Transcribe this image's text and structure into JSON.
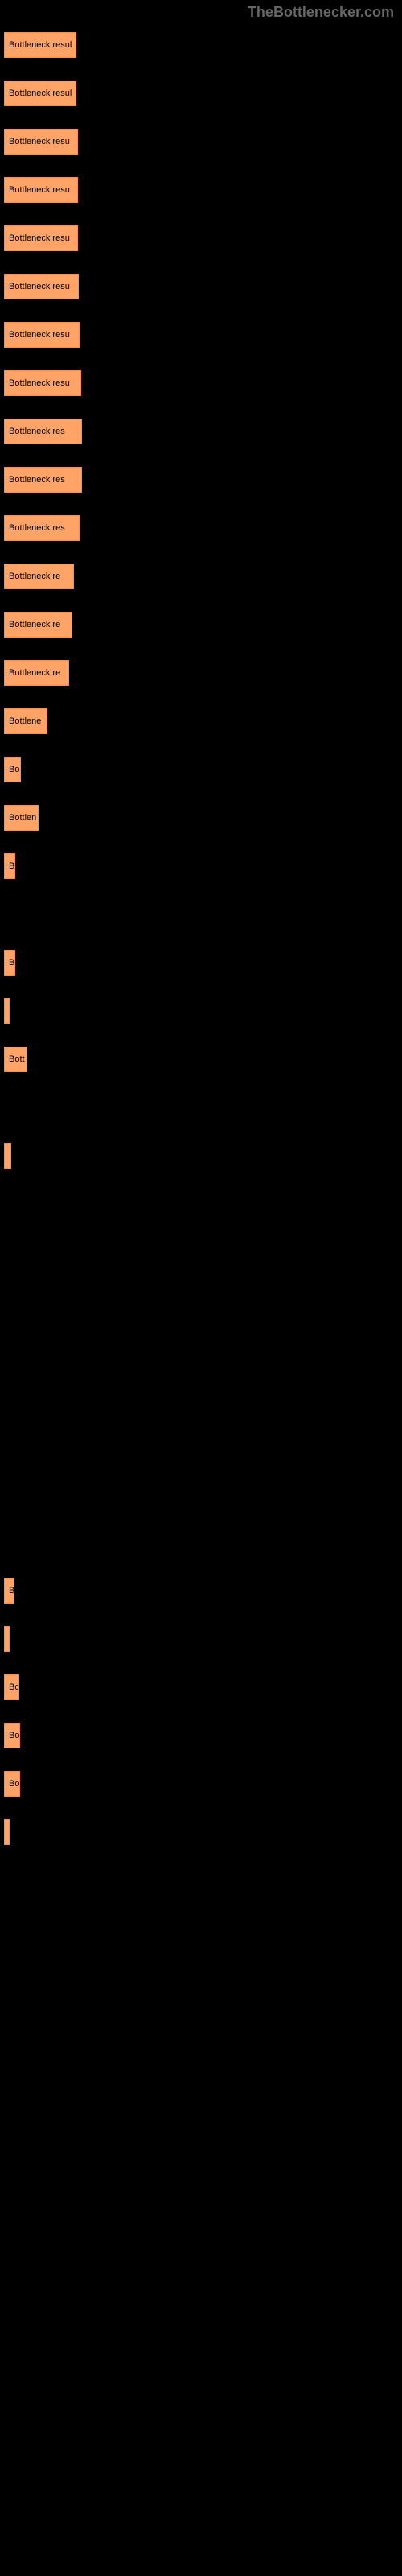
{
  "watermark": "TheBottlenecker.com",
  "chart": {
    "type": "bar",
    "bar_color": "#ffa366",
    "bar_border_color": "#ff8c42",
    "background_color": "#000000",
    "label_color": "#000000",
    "label_fontsize": 11,
    "bars": [
      {
        "width": 90,
        "label": "Bottleneck resul"
      },
      {
        "width": 90,
        "label": "Bottleneck resul"
      },
      {
        "width": 92,
        "label": "Bottleneck resu"
      },
      {
        "width": 92,
        "label": "Bottleneck resu"
      },
      {
        "width": 92,
        "label": "Bottleneck resu"
      },
      {
        "width": 93,
        "label": "Bottleneck resu"
      },
      {
        "width": 94,
        "label": "Bottleneck resu"
      },
      {
        "width": 96,
        "label": "Bottleneck resu"
      },
      {
        "width": 97,
        "label": "Bottleneck res"
      },
      {
        "width": 97,
        "label": "Bottleneck res"
      },
      {
        "width": 94,
        "label": "Bottleneck res"
      },
      {
        "width": 87,
        "label": "Bottleneck re"
      },
      {
        "width": 85,
        "label": "Bottleneck re"
      },
      {
        "width": 81,
        "label": "Bottleneck re"
      },
      {
        "width": 54,
        "label": "Bottlene"
      },
      {
        "width": 21,
        "label": "Bo"
      },
      {
        "width": 43,
        "label": "Bottlen"
      },
      {
        "width": 14,
        "label": "B"
      },
      {
        "width": 0,
        "label": ""
      },
      {
        "width": 14,
        "label": "B"
      },
      {
        "width": 3,
        "label": ""
      },
      {
        "width": 29,
        "label": "Bott"
      },
      {
        "width": 0,
        "label": ""
      },
      {
        "width": 9,
        "label": ""
      },
      {
        "width": 0,
        "label": ""
      },
      {
        "width": 0,
        "label": ""
      },
      {
        "width": 0,
        "label": ""
      },
      {
        "width": 0,
        "label": ""
      },
      {
        "width": 0,
        "label": ""
      },
      {
        "width": 0,
        "label": ""
      },
      {
        "width": 0,
        "label": ""
      },
      {
        "width": 0,
        "label": ""
      },
      {
        "width": 13,
        "label": "B"
      },
      {
        "width": 7,
        "label": ""
      },
      {
        "width": 19,
        "label": "Bo"
      },
      {
        "width": 20,
        "label": "Bo"
      },
      {
        "width": 20,
        "label": "Bo"
      },
      {
        "width": 5,
        "label": ""
      }
    ]
  }
}
